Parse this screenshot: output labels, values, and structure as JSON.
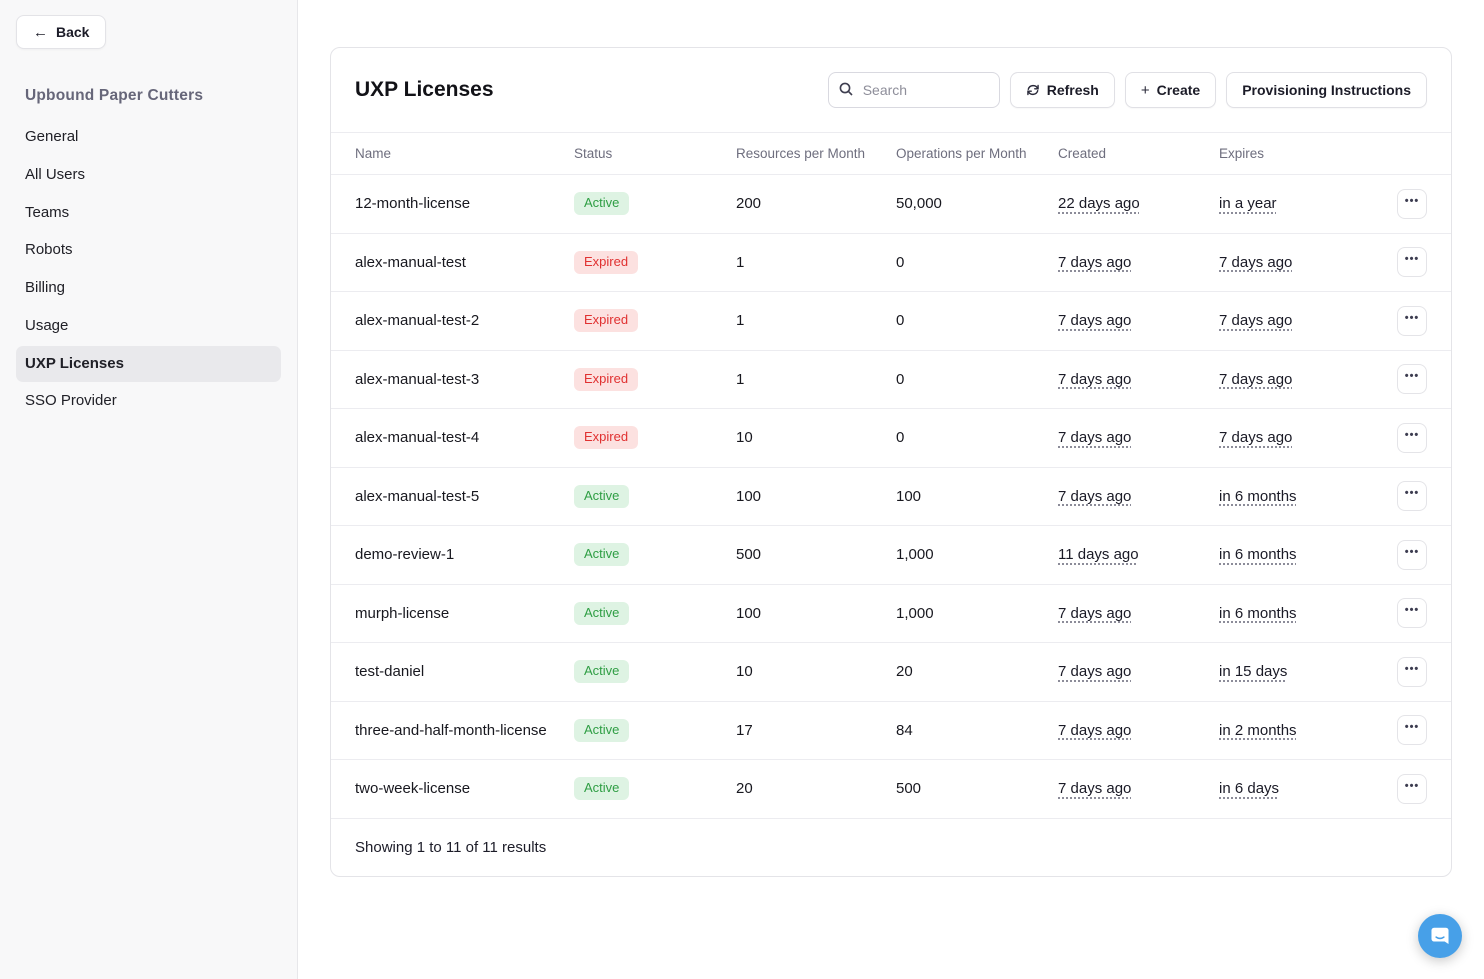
{
  "sidebar": {
    "back_label": "Back",
    "org_title": "Upbound Paper Cutters",
    "items": [
      {
        "label": "General",
        "active": false
      },
      {
        "label": "All Users",
        "active": false
      },
      {
        "label": "Teams",
        "active": false
      },
      {
        "label": "Robots",
        "active": false
      },
      {
        "label": "Billing",
        "active": false
      },
      {
        "label": "Usage",
        "active": false
      },
      {
        "label": "UXP Licenses",
        "active": true
      },
      {
        "label": "SSO Provider",
        "active": false
      }
    ]
  },
  "main": {
    "title": "UXP Licenses",
    "search_placeholder": "Search",
    "buttons": {
      "refresh": "Refresh",
      "create": "Create",
      "provisioning": "Provisioning Instructions"
    },
    "table": {
      "columns": [
        "Name",
        "Status",
        "Resources per Month",
        "Operations per Month",
        "Created",
        "Expires"
      ],
      "rows": [
        {
          "name": "12-month-license",
          "status": "Active",
          "resources": "200",
          "operations": "50,000",
          "created": "22 days ago",
          "expires": "in a year"
        },
        {
          "name": "alex-manual-test",
          "status": "Expired",
          "resources": "1",
          "operations": "0",
          "created": "7 days ago",
          "expires": "7 days ago"
        },
        {
          "name": "alex-manual-test-2",
          "status": "Expired",
          "resources": "1",
          "operations": "0",
          "created": "7 days ago",
          "expires": "7 days ago"
        },
        {
          "name": "alex-manual-test-3",
          "status": "Expired",
          "resources": "1",
          "operations": "0",
          "created": "7 days ago",
          "expires": "7 days ago"
        },
        {
          "name": "alex-manual-test-4",
          "status": "Expired",
          "resources": "10",
          "operations": "0",
          "created": "7 days ago",
          "expires": "7 days ago"
        },
        {
          "name": "alex-manual-test-5",
          "status": "Active",
          "resources": "100",
          "operations": "100",
          "created": "7 days ago",
          "expires": "in 6 months"
        },
        {
          "name": "demo-review-1",
          "status": "Active",
          "resources": "500",
          "operations": "1,000",
          "created": "11 days ago",
          "expires": "in 6 months"
        },
        {
          "name": "murph-license",
          "status": "Active",
          "resources": "100",
          "operations": "1,000",
          "created": "7 days ago",
          "expires": "in 6 months"
        },
        {
          "name": "test-daniel",
          "status": "Active",
          "resources": "10",
          "operations": "20",
          "created": "7 days ago",
          "expires": "in 15 days"
        },
        {
          "name": "three-and-half-month-license",
          "status": "Active",
          "resources": "17",
          "operations": "84",
          "created": "7 days ago",
          "expires": "in 2 months"
        },
        {
          "name": "two-week-license",
          "status": "Active",
          "resources": "20",
          "operations": "500",
          "created": "7 days ago",
          "expires": "in 6 days"
        }
      ],
      "footer": "Showing 1 to 11 of 11 results"
    }
  },
  "colors": {
    "active_bg": "#def3e3",
    "active_text": "#2f9e44",
    "expired_bg": "#fce1e0",
    "expired_text": "#e03131",
    "chat_launcher": "#47a0e8"
  }
}
